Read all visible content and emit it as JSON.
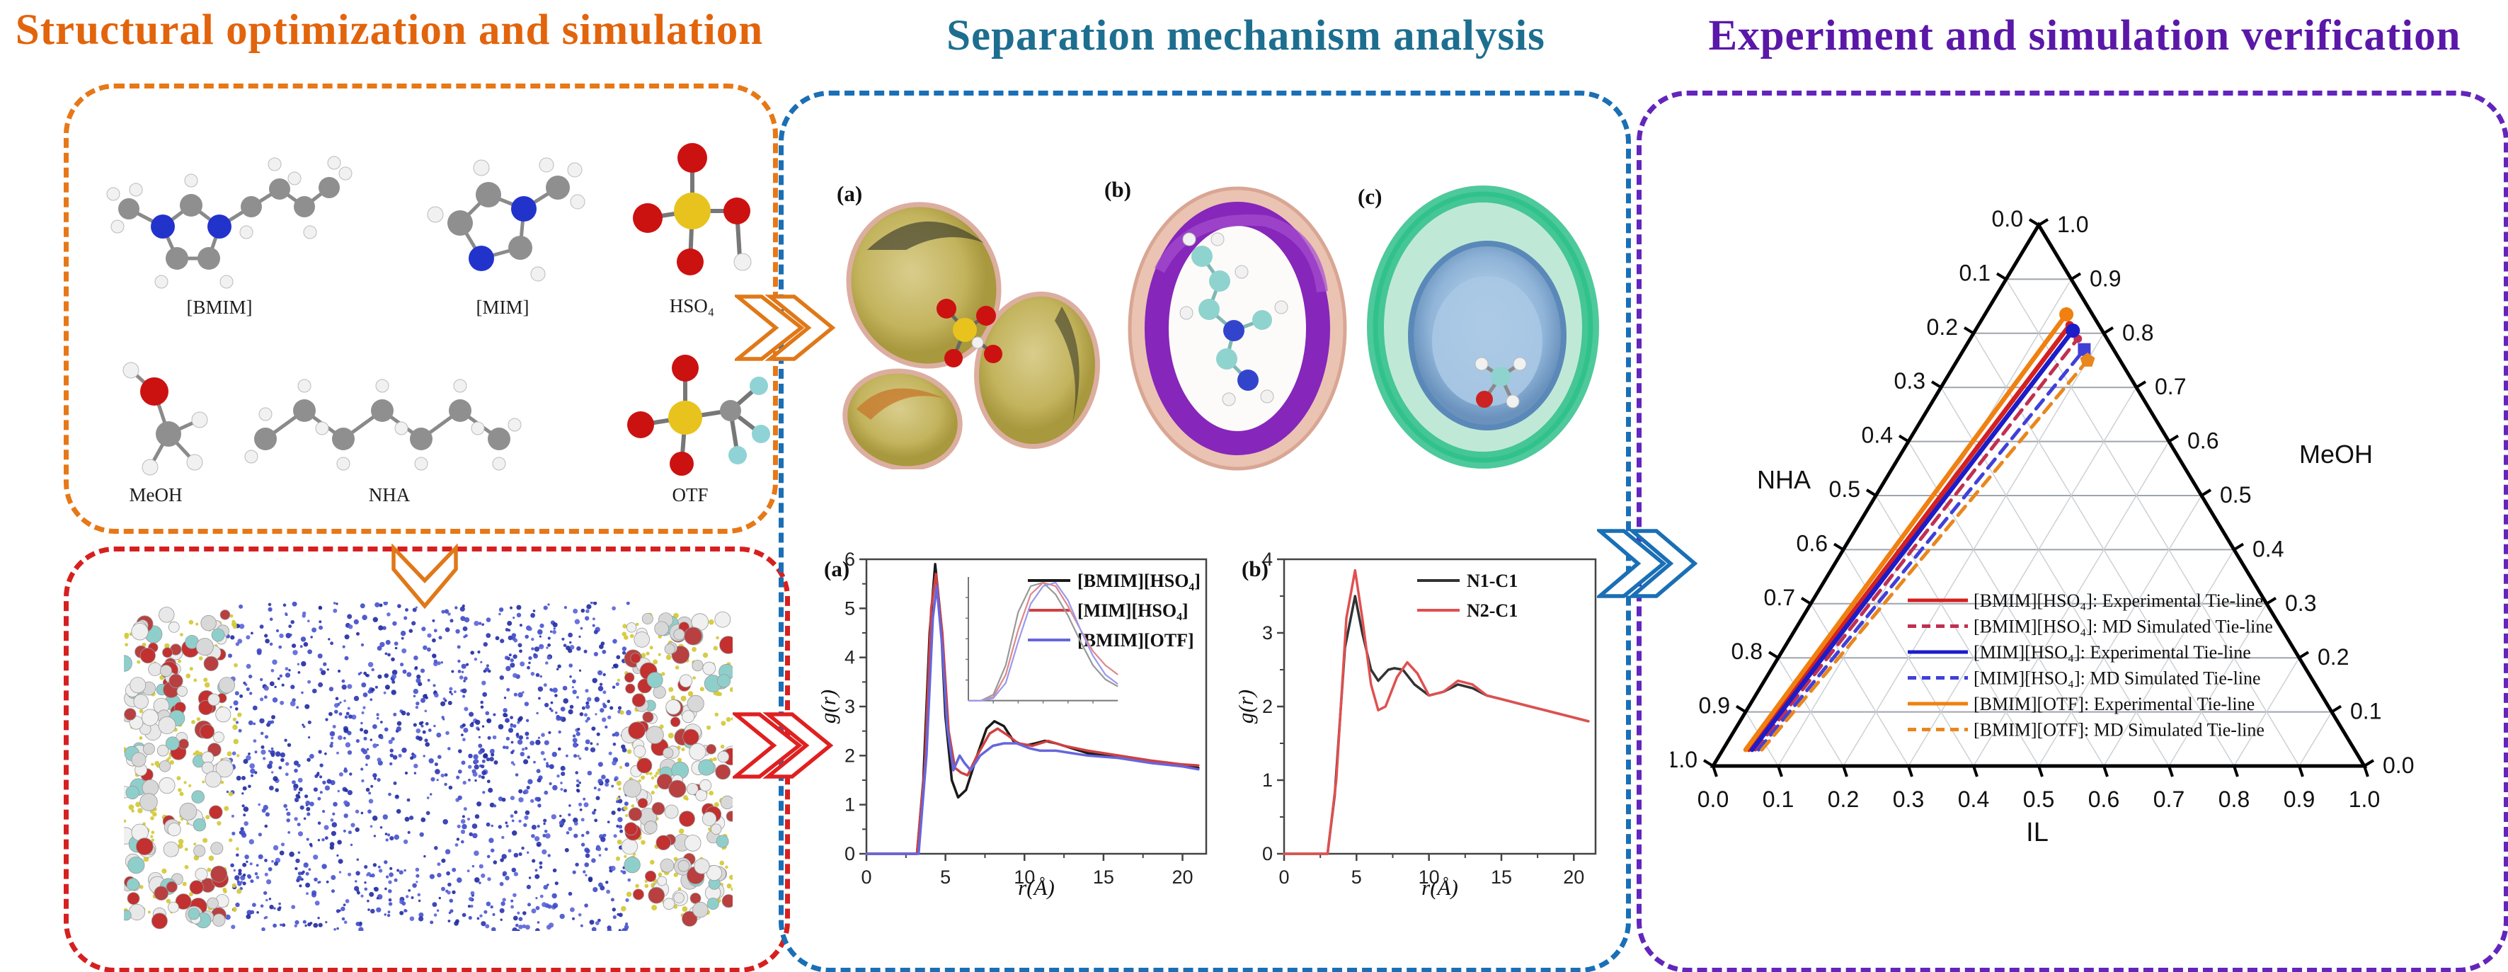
{
  "colors": {
    "left_title": "#e2640c",
    "left_border": "#e67817",
    "middle_title": "#1d6e8f",
    "middle_border": "#1a6fb5",
    "right_title": "#5a17a8",
    "right_border": "#6325bb",
    "bottom_left_border": "#d6201f",
    "arrow_orange": "#e07818",
    "arrow_red": "#e02020",
    "arrow_blue": "#1a6fb5"
  },
  "panels": {
    "left": {
      "title": "Structural optimization and simulation",
      "molecules": [
        {
          "label": "[BMIM]"
        },
        {
          "label": "[MIM]"
        },
        {
          "label": "HSO₄"
        },
        {
          "label": "MeOH"
        },
        {
          "label": "NHA"
        },
        {
          "label": "OTF"
        }
      ]
    },
    "middle": {
      "title": "Separation mechanism analysis",
      "iso_labels": [
        "(a)",
        "(b)",
        "(c)"
      ]
    },
    "right": {
      "title": "Experiment and simulation verification"
    }
  },
  "chart_data": [
    {
      "type": "line",
      "panel_label": "(a)",
      "xlabel": "r(Å)",
      "ylabel": "g(r)",
      "xlim": [
        0,
        21.5
      ],
      "ylim": [
        0,
        6
      ],
      "xticks": [
        0,
        5,
        10,
        15,
        20
      ],
      "yticks": [
        0,
        1,
        2,
        3,
        4,
        5,
        6
      ],
      "grid": false,
      "legend_position": "top-right",
      "series": [
        {
          "name": "[BMIM][HSO₄]",
          "color": "#1a1a1a",
          "points": [
            [
              0,
              0
            ],
            [
              3.2,
              0
            ],
            [
              3.6,
              1.5
            ],
            [
              4.0,
              4.5
            ],
            [
              4.35,
              5.9
            ],
            [
              4.7,
              4.8
            ],
            [
              5.0,
              2.8
            ],
            [
              5.4,
              1.5
            ],
            [
              5.8,
              1.15
            ],
            [
              6.3,
              1.3
            ],
            [
              7.0,
              2.0
            ],
            [
              7.6,
              2.55
            ],
            [
              8.1,
              2.7
            ],
            [
              8.7,
              2.6
            ],
            [
              9.3,
              2.3
            ],
            [
              10,
              2.2
            ],
            [
              10.7,
              2.25
            ],
            [
              11.3,
              2.3
            ],
            [
              12,
              2.25
            ],
            [
              13,
              2.15
            ],
            [
              14,
              2.05
            ],
            [
              16,
              1.95
            ],
            [
              18,
              1.85
            ],
            [
              20,
              1.8
            ],
            [
              21,
              1.75
            ]
          ]
        },
        {
          "name": "[MIM][HSO₄]",
          "color": "#d04040",
          "points": [
            [
              0,
              0
            ],
            [
              3.2,
              0
            ],
            [
              3.7,
              1.8
            ],
            [
              4.1,
              5.0
            ],
            [
              4.4,
              5.7
            ],
            [
              4.8,
              4.5
            ],
            [
              5.2,
              2.5
            ],
            [
              5.6,
              1.75
            ],
            [
              6.0,
              1.65
            ],
            [
              6.4,
              1.6
            ],
            [
              7.0,
              2.0
            ],
            [
              7.8,
              2.45
            ],
            [
              8.3,
              2.55
            ],
            [
              9.0,
              2.4
            ],
            [
              9.6,
              2.25
            ],
            [
              10.5,
              2.2
            ],
            [
              11.5,
              2.3
            ],
            [
              12.5,
              2.2
            ],
            [
              14,
              2.1
            ],
            [
              16,
              2.0
            ],
            [
              18,
              1.9
            ],
            [
              20,
              1.82
            ],
            [
              21,
              1.8
            ]
          ]
        },
        {
          "name": "[BMIM][OTF]",
          "color": "#6666dd",
          "points": [
            [
              0,
              0
            ],
            [
              3.3,
              0
            ],
            [
              3.8,
              2.0
            ],
            [
              4.2,
              4.8
            ],
            [
              4.45,
              5.45
            ],
            [
              4.8,
              4.2
            ],
            [
              5.1,
              2.6
            ],
            [
              5.5,
              1.7
            ],
            [
              5.9,
              2.0
            ],
            [
              6.2,
              1.85
            ],
            [
              6.6,
              1.7
            ],
            [
              7.2,
              2.0
            ],
            [
              8.0,
              2.2
            ],
            [
              8.7,
              2.25
            ],
            [
              9.5,
              2.25
            ],
            [
              10.3,
              2.15
            ],
            [
              11,
              2.1
            ],
            [
              12,
              2.1
            ],
            [
              13,
              2.05
            ],
            [
              14,
              2.0
            ],
            [
              16,
              1.95
            ],
            [
              18,
              1.85
            ],
            [
              20,
              1.78
            ],
            [
              21,
              1.72
            ]
          ]
        }
      ],
      "inset": {
        "series": [
          {
            "color": "#999999",
            "values": [
              0,
              0,
              0.05,
              0.3,
              0.75,
              0.97,
              1.0,
              0.9,
              0.72,
              0.5,
              0.3,
              0.18,
              0.12
            ]
          },
          {
            "color": "#dd8888",
            "values": [
              0,
              0,
              0.03,
              0.22,
              0.6,
              0.9,
              1.0,
              0.97,
              0.8,
              0.6,
              0.42,
              0.3,
              0.22
            ]
          },
          {
            "color": "#9999ee",
            "values": [
              0,
              0,
              0.02,
              0.15,
              0.5,
              0.82,
              0.97,
              1.0,
              0.85,
              0.6,
              0.38,
              0.22,
              0.14
            ]
          }
        ]
      }
    },
    {
      "type": "line",
      "panel_label": "(b)",
      "xlabel": "r(Å)",
      "ylabel": "g(r)",
      "xlim": [
        0,
        21.5
      ],
      "ylim": [
        0,
        4
      ],
      "xticks": [
        0,
        5,
        10,
        15,
        20
      ],
      "yticks": [
        0,
        1,
        2,
        3,
        4
      ],
      "grid": false,
      "legend_position": "top-right",
      "series": [
        {
          "name": "N1-C1",
          "color": "#333333",
          "points": [
            [
              0,
              0
            ],
            [
              3.0,
              0
            ],
            [
              3.5,
              0.8
            ],
            [
              4.2,
              2.8
            ],
            [
              4.9,
              3.5
            ],
            [
              5.4,
              3.0
            ],
            [
              6.0,
              2.5
            ],
            [
              6.5,
              2.35
            ],
            [
              7.2,
              2.5
            ],
            [
              7.6,
              2.52
            ],
            [
              8.2,
              2.5
            ],
            [
              9.0,
              2.3
            ],
            [
              10,
              2.15
            ],
            [
              11,
              2.2
            ],
            [
              12,
              2.3
            ],
            [
              13,
              2.25
            ],
            [
              14,
              2.15
            ],
            [
              15,
              2.1
            ],
            [
              16,
              2.05
            ],
            [
              18,
              1.95
            ],
            [
              20,
              1.85
            ],
            [
              21,
              1.8
            ]
          ]
        },
        {
          "name": "N2-C1",
          "color": "#e05050",
          "points": [
            [
              0,
              0
            ],
            [
              3.0,
              0
            ],
            [
              3.6,
              1.0
            ],
            [
              4.3,
              3.2
            ],
            [
              4.9,
              3.85
            ],
            [
              5.4,
              3.2
            ],
            [
              6.0,
              2.3
            ],
            [
              6.5,
              1.95
            ],
            [
              7.0,
              2.0
            ],
            [
              7.8,
              2.4
            ],
            [
              8.5,
              2.6
            ],
            [
              9.2,
              2.45
            ],
            [
              10,
              2.15
            ],
            [
              11,
              2.2
            ],
            [
              12,
              2.35
            ],
            [
              13,
              2.3
            ],
            [
              14,
              2.15
            ],
            [
              15,
              2.1
            ],
            [
              16,
              2.05
            ],
            [
              18,
              1.95
            ],
            [
              20,
              1.85
            ],
            [
              21,
              1.8
            ]
          ]
        }
      ]
    },
    {
      "type": "ternary",
      "axes": {
        "left": {
          "label": "NHA",
          "ticks": [
            "0.0",
            "0.1",
            "0.2",
            "0.3",
            "0.4",
            "0.5",
            "0.6",
            "0.7",
            "0.8",
            "0.9",
            "1.0"
          ]
        },
        "right": {
          "label": "MeOH",
          "ticks": [
            "1.0",
            "0.9",
            "0.8",
            "0.7",
            "0.6",
            "0.5",
            "0.4",
            "0.3",
            "0.2",
            "0.1",
            "0.0"
          ]
        },
        "bottom": {
          "label": "IL",
          "ticks": [
            "0.0",
            "0.1",
            "0.2",
            "0.3",
            "0.4",
            "0.5",
            "0.6",
            "0.7",
            "0.8",
            "0.9",
            "1.0"
          ]
        }
      },
      "tie_lines": [
        {
          "name": "[BMIM][HSO₄]: Experimental Tie-line",
          "color": "#d42020",
          "style": "solid",
          "marker": "dot",
          "start": [
            0.04,
            0.93,
            0.03
          ],
          "end": [
            0.14,
            0.045,
            0.815
          ]
        },
        {
          "name": "[BMIM][HSO₄]: MD Simulated Tie-line",
          "color": "#c03050",
          "style": "dashed",
          "marker": "dot",
          "start": [
            0.05,
            0.92,
            0.03
          ],
          "end": [
            0.165,
            0.045,
            0.79
          ]
        },
        {
          "name": "[MIM][HSO₄]: Experimental Tie-line",
          "color": "#1c1cc8",
          "style": "solid",
          "marker": "circle",
          "start": [
            0.045,
            0.925,
            0.03
          ],
          "end": [
            0.15,
            0.045,
            0.805
          ]
        },
        {
          "name": "[MIM][HSO₄]: MD Simulated Tie-line",
          "color": "#4040d8",
          "style": "dashed",
          "marker": "square",
          "start": [
            0.055,
            0.915,
            0.03
          ],
          "end": [
            0.185,
            0.045,
            0.77
          ]
        },
        {
          "name": "[BMIM][OTF]: Experimental Tie-line",
          "color": "#f08010",
          "style": "solid",
          "marker": "circle",
          "start": [
            0.035,
            0.935,
            0.03
          ],
          "end": [
            0.125,
            0.04,
            0.835
          ]
        },
        {
          "name": "[BMIM][OTF]: MD Simulated Tie-line",
          "color": "#e8871e",
          "style": "dashed",
          "marker": "pentagon",
          "start": [
            0.06,
            0.91,
            0.03
          ],
          "end": [
            0.2,
            0.05,
            0.75
          ]
        }
      ]
    }
  ]
}
